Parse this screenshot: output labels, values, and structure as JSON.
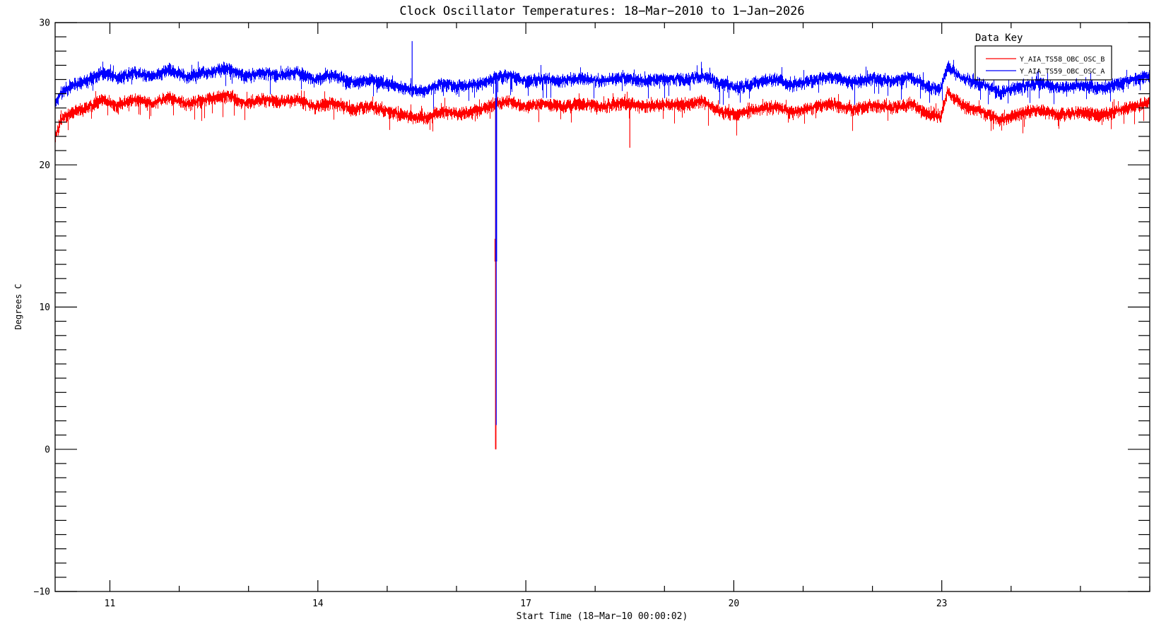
{
  "page": {
    "background_color": "#ffffff",
    "plot_frame_color": "#000000"
  },
  "chart_data": {
    "type": "line",
    "title": "Clock Oscillator Temperatures: 18−Mar−2010 to 1−Jan−2026",
    "xlabel": "Start Time (18−Mar−10 00:00:02)",
    "ylabel": "Degrees C",
    "x_range_years": [
      2010.21,
      2026.0
    ],
    "ylim": [
      -10,
      30
    ],
    "x_major_ticks": [
      2011,
      2014,
      2017,
      2020,
      2023
    ],
    "x_major_tick_labels": [
      "11",
      "14",
      "17",
      "20",
      "23"
    ],
    "x_minor_step_years": 1,
    "y_major_ticks": [
      30,
      20,
      10,
      0,
      -10
    ],
    "y_major_tick_labels": [
      "30",
      "20",
      "10",
      "0",
      "−10"
    ],
    "y_minor_step": 1,
    "grid": false,
    "legend": {
      "title": "Data Key",
      "position": "top-right",
      "entries": [
        {
          "label": "Y_AIA_TS58_OBC_OSC_B",
          "color": "#ff0000"
        },
        {
          "label": "Y_AIA_TS59_OBC_OSC_A",
          "color": "#0000ff"
        }
      ]
    },
    "series": [
      {
        "name": "Y_AIA_TS58_OBC_OSC_B",
        "color": "#ff0000",
        "seed": 1234,
        "points": [
          [
            2010.21,
            22.0
          ],
          [
            2010.3,
            23.2
          ],
          [
            2010.45,
            23.7
          ],
          [
            2010.7,
            24.1
          ],
          [
            2010.9,
            24.6
          ],
          [
            2011.1,
            24.2
          ],
          [
            2011.35,
            24.6
          ],
          [
            2011.6,
            24.3
          ],
          [
            2011.85,
            24.8
          ],
          [
            2012.1,
            24.3
          ],
          [
            2012.4,
            24.6
          ],
          [
            2012.7,
            24.9
          ],
          [
            2012.95,
            24.3
          ],
          [
            2013.2,
            24.6
          ],
          [
            2013.45,
            24.4
          ],
          [
            2013.7,
            24.6
          ],
          [
            2013.95,
            24.1
          ],
          [
            2014.2,
            24.4
          ],
          [
            2014.5,
            23.9
          ],
          [
            2014.75,
            24.1
          ],
          [
            2015.0,
            23.8
          ],
          [
            2015.3,
            23.4
          ],
          [
            2015.55,
            23.3
          ],
          [
            2015.8,
            23.8
          ],
          [
            2016.05,
            23.6
          ],
          [
            2016.3,
            23.8
          ],
          [
            2016.55,
            24.3
          ],
          [
            2016.75,
            24.5
          ],
          [
            2017.0,
            24.1
          ],
          [
            2017.25,
            24.3
          ],
          [
            2017.5,
            24.1
          ],
          [
            2017.8,
            24.3
          ],
          [
            2018.1,
            24.1
          ],
          [
            2018.4,
            24.4
          ],
          [
            2018.7,
            24.1
          ],
          [
            2019.0,
            24.3
          ],
          [
            2019.3,
            24.2
          ],
          [
            2019.55,
            24.5
          ],
          [
            2019.8,
            23.8
          ],
          [
            2020.05,
            23.5
          ],
          [
            2020.3,
            23.9
          ],
          [
            2020.6,
            24.1
          ],
          [
            2020.85,
            23.7
          ],
          [
            2021.1,
            24.0
          ],
          [
            2021.4,
            24.3
          ],
          [
            2021.7,
            23.9
          ],
          [
            2022.0,
            24.2
          ],
          [
            2022.3,
            24.0
          ],
          [
            2022.55,
            24.3
          ],
          [
            2022.8,
            23.6
          ],
          [
            2022.98,
            23.4
          ],
          [
            2023.08,
            25.1
          ],
          [
            2023.3,
            24.2
          ],
          [
            2023.6,
            23.7
          ],
          [
            2023.85,
            23.2
          ],
          [
            2024.1,
            23.6
          ],
          [
            2024.4,
            23.9
          ],
          [
            2024.7,
            23.5
          ],
          [
            2025.0,
            23.7
          ],
          [
            2025.3,
            23.5
          ],
          [
            2025.6,
            23.9
          ],
          [
            2025.9,
            24.3
          ],
          [
            2026.0,
            24.4
          ]
        ]
      },
      {
        "name": "Y_AIA_TS59_OBC_OSC_A",
        "color": "#0000ff",
        "seed": 5678,
        "points": [
          [
            2010.21,
            24.2
          ],
          [
            2010.3,
            25.1
          ],
          [
            2010.45,
            25.6
          ],
          [
            2010.7,
            26.0
          ],
          [
            2010.9,
            26.5
          ],
          [
            2011.1,
            26.1
          ],
          [
            2011.35,
            26.5
          ],
          [
            2011.6,
            26.2
          ],
          [
            2011.85,
            26.7
          ],
          [
            2012.1,
            26.2
          ],
          [
            2012.4,
            26.5
          ],
          [
            2012.7,
            26.8
          ],
          [
            2012.95,
            26.2
          ],
          [
            2013.2,
            26.5
          ],
          [
            2013.45,
            26.3
          ],
          [
            2013.7,
            26.5
          ],
          [
            2013.95,
            26.0
          ],
          [
            2014.2,
            26.3
          ],
          [
            2014.5,
            25.8
          ],
          [
            2014.75,
            26.0
          ],
          [
            2015.0,
            25.7
          ],
          [
            2015.3,
            25.3
          ],
          [
            2015.55,
            25.2
          ],
          [
            2015.8,
            25.7
          ],
          [
            2016.05,
            25.5
          ],
          [
            2016.3,
            25.7
          ],
          [
            2016.55,
            26.1
          ],
          [
            2016.75,
            26.3
          ],
          [
            2017.0,
            25.9
          ],
          [
            2017.25,
            26.1
          ],
          [
            2017.5,
            25.9
          ],
          [
            2017.8,
            26.1
          ],
          [
            2018.1,
            25.9
          ],
          [
            2018.4,
            26.2
          ],
          [
            2018.7,
            25.9
          ],
          [
            2019.0,
            26.1
          ],
          [
            2019.3,
            26.0
          ],
          [
            2019.55,
            26.3
          ],
          [
            2019.8,
            25.7
          ],
          [
            2020.05,
            25.4
          ],
          [
            2020.3,
            25.8
          ],
          [
            2020.6,
            26.0
          ],
          [
            2020.85,
            25.6
          ],
          [
            2021.1,
            25.9
          ],
          [
            2021.4,
            26.2
          ],
          [
            2021.7,
            25.8
          ],
          [
            2022.0,
            26.1
          ],
          [
            2022.3,
            25.9
          ],
          [
            2022.55,
            26.2
          ],
          [
            2022.8,
            25.5
          ],
          [
            2022.98,
            25.3
          ],
          [
            2023.08,
            26.9
          ],
          [
            2023.3,
            26.1
          ],
          [
            2023.6,
            25.6
          ],
          [
            2023.85,
            25.1
          ],
          [
            2024.1,
            25.5
          ],
          [
            2024.4,
            25.8
          ],
          [
            2024.7,
            25.4
          ],
          [
            2025.0,
            25.6
          ],
          [
            2025.3,
            25.4
          ],
          [
            2025.6,
            25.8
          ],
          [
            2025.9,
            26.2
          ],
          [
            2026.0,
            26.3
          ]
        ]
      }
    ],
    "noise": {
      "band_halfwidth_C": 0.28,
      "down_spike_prob": 0.05,
      "down_spike_max_C": 1.15,
      "up_spike_prob": 0.025,
      "up_spike_max_C": 0.65
    },
    "anomalies": [
      {
        "t": 2015.36,
        "series": "Y_AIA_TS59_OBC_OSC_A",
        "type": "up-spike",
        "value_C": 28.7
      },
      {
        "t": 2016.57,
        "series": "both",
        "type": "dropout",
        "red_min_C": 0.0,
        "blue_min_C": 1.7,
        "blue_thick_to_C": 13.2,
        "red_sliver_C": [
          13.2,
          14.8
        ]
      },
      {
        "t": 2018.5,
        "series": "Y_AIA_TS58_OBC_OSC_B",
        "type": "down-spike",
        "value_C": 21.2
      }
    ]
  }
}
